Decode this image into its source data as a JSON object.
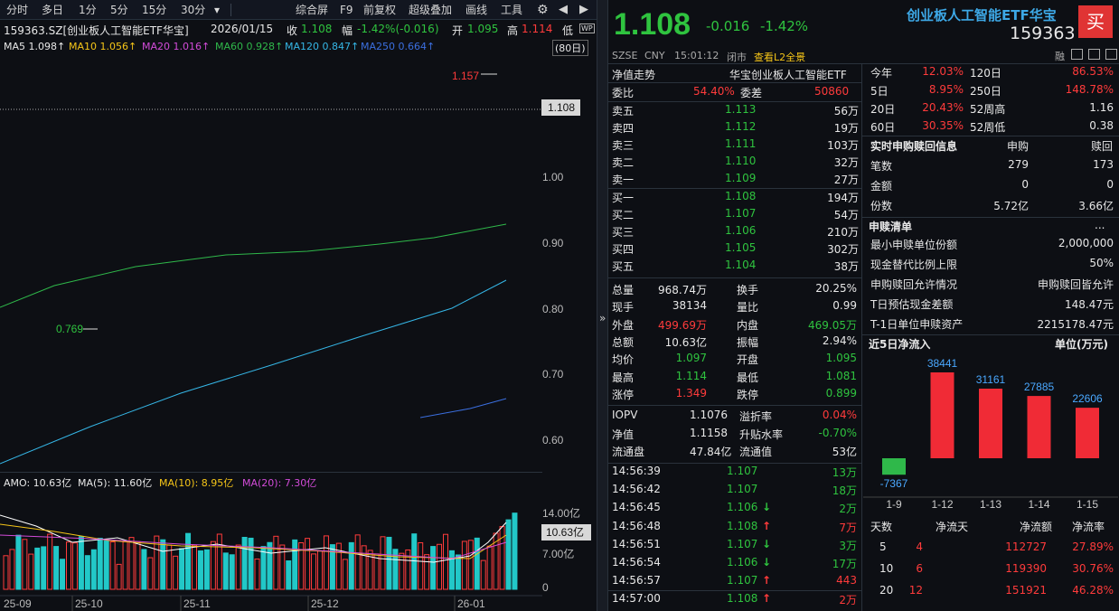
{
  "toolbar": {
    "tabs": [
      "分时",
      "多日",
      "1分",
      "5分",
      "15分",
      "30分"
    ],
    "active": "日",
    "buttons": [
      "综合屏",
      "F9",
      "前复权",
      "超级叠加",
      "画线",
      "工具"
    ]
  },
  "info": {
    "code": "159363.SZ[创业板人工智能ETF华宝]",
    "date": "2026/01/15",
    "close_label": "收",
    "close": "1.108",
    "change_label": "幅",
    "change": "-1.42%(-0.016)",
    "open_label": "开",
    "open": "1.095",
    "high_label": "高",
    "high": "1.114",
    "low_label": "低"
  },
  "ma": {
    "ma5": "MA5 1.098↑",
    "ma10": "MA10 1.056↑",
    "ma20": "MA20 1.016↑",
    "ma60": "MA60 0.928↑",
    "ma120": "MA120 0.847↑",
    "ma250": "MA250 0.664↑",
    "period": "(80日)"
  },
  "colors": {
    "ma5": "#ffffff",
    "ma10": "#f5c518",
    "ma20": "#d24bd8",
    "ma60": "#2fb84a",
    "ma120": "#35b6e6",
    "ma250": "#3b6fe0",
    "up": "#ff3b3b",
    "down": "#22c8c8"
  },
  "price_axis": [
    "1.00",
    "0.90",
    "0.80",
    "0.70",
    "0.60"
  ],
  "price_tag": "1.108",
  "hi_label": "1.157",
  "lo_label": "0.769",
  "amo": {
    "amo": "AMO: 10.63亿",
    "ma5": "MA(5): 11.60亿",
    "ma10": "MA(10): 8.95亿",
    "ma20": "MA(20): 7.30亿"
  },
  "vol_axis": [
    "14.00亿",
    "7.00亿",
    "0"
  ],
  "vol_tag": "10.63亿",
  "dates": [
    "25-09",
    "25-10",
    "25-11",
    "25-12",
    "26-01"
  ],
  "collapse": "»",
  "quote": {
    "price": "1.108",
    "change": "-0.016",
    "pct": "-1.42%",
    "name": "创业板人工智能ETF华宝",
    "code": "159363",
    "buy": "买",
    "market": "SZSE",
    "currency": "CNY",
    "time": "15:01:12",
    "status": "闭市",
    "l2": "查看L2全景",
    "rong": "融"
  },
  "nav": {
    "label": "净值走势",
    "name": "华宝创业板人工智能ETF"
  },
  "wei": {
    "bi_label": "委比",
    "bi": "54.40%",
    "cha_label": "委差",
    "cha": "50860"
  },
  "asks": [
    [
      "卖五",
      "1.113",
      "56万"
    ],
    [
      "卖四",
      "1.112",
      "19万"
    ],
    [
      "卖三",
      "1.111",
      "103万"
    ],
    [
      "卖二",
      "1.110",
      "32万"
    ],
    [
      "卖一",
      "1.109",
      "27万"
    ]
  ],
  "bids": [
    [
      "买一",
      "1.108",
      "194万"
    ],
    [
      "买二",
      "1.107",
      "54万"
    ],
    [
      "买三",
      "1.106",
      "210万"
    ],
    [
      "买四",
      "1.105",
      "302万"
    ],
    [
      "买五",
      "1.104",
      "38万"
    ]
  ],
  "stats": [
    [
      "总量",
      "968.74万",
      "换手",
      "20.25%"
    ],
    [
      "现手",
      "38134",
      "量比",
      "0.99"
    ],
    [
      "外盘",
      "499.69万",
      "内盘",
      "469.05万"
    ],
    [
      "总额",
      "10.63亿",
      "振幅",
      "2.94%"
    ],
    [
      "均价",
      "1.097",
      "开盘",
      "1.095"
    ],
    [
      "最高",
      "1.114",
      "最低",
      "1.081"
    ],
    [
      "涨停",
      "1.349",
      "跌停",
      "0.899"
    ]
  ],
  "iopv": [
    [
      "IOPV",
      "1.1076",
      "溢折率",
      "0.04%"
    ],
    [
      "净值",
      "1.1158",
      "升贴水率",
      "-0.70%"
    ],
    [
      "流通盘",
      "47.84亿",
      "流通值",
      "53亿"
    ]
  ],
  "ticks": [
    [
      "14:56:39",
      "1.107",
      "13万",
      ""
    ],
    [
      "14:56:42",
      "1.107",
      "18万",
      ""
    ],
    [
      "14:56:45",
      "1.106",
      "2万",
      "↓"
    ],
    [
      "14:56:48",
      "1.108",
      "7万",
      "↑"
    ],
    [
      "14:56:51",
      "1.107",
      "3万",
      "↓"
    ],
    [
      "14:56:54",
      "1.106",
      "17万",
      "↓"
    ],
    [
      "14:56:57",
      "1.107",
      "443",
      "↑"
    ],
    [
      "14:57:00",
      "1.108",
      "2万",
      "↑"
    ]
  ],
  "perf": [
    [
      "今年",
      "12.03%",
      "120日",
      "86.53%"
    ],
    [
      "5日",
      "8.95%",
      "250日",
      "148.78%"
    ],
    [
      "20日",
      "20.43%",
      "52周高",
      "1.16"
    ],
    [
      "60日",
      "30.35%",
      "52周低",
      "0.38"
    ]
  ],
  "sg": {
    "title": "实时申购赎回信息",
    "c1": "申购",
    "c2": "赎回",
    "rows": [
      [
        "笔数",
        "279",
        "173"
      ],
      [
        "金额",
        "0",
        "0"
      ],
      [
        "份数",
        "5.72亿",
        "3.66亿"
      ]
    ]
  },
  "list": {
    "title": "申赎清单",
    "more": "...",
    "rows": [
      [
        "最小申赎单位份额",
        "2,000,000"
      ],
      [
        "现金替代比例上限",
        "50%"
      ],
      [
        "申购赎回允许情况",
        "申购赎回皆允许"
      ],
      [
        "T日预估现金差额",
        "148.47元"
      ],
      [
        "T-1日单位申赎资产",
        "2215178.47元"
      ]
    ]
  },
  "flow": {
    "title": "近5日净流入",
    "unit": "单位(万元)"
  },
  "chart_data": {
    "type": "bar",
    "title": "近5日净流入",
    "ylabel": "单位(万元)",
    "categories": [
      "1-9",
      "1-12",
      "1-13",
      "1-14",
      "1-15"
    ],
    "values": [
      -7367,
      38441,
      31161,
      27885,
      22606
    ]
  },
  "flow_table": {
    "headers": [
      "天数",
      "净流天",
      "净流额",
      "净流率"
    ],
    "rows": [
      [
        "5",
        "4",
        "112727",
        "27.89%"
      ],
      [
        "10",
        "6",
        "119390",
        "30.76%"
      ],
      [
        "20",
        "12",
        "151921",
        "46.28%"
      ]
    ]
  }
}
